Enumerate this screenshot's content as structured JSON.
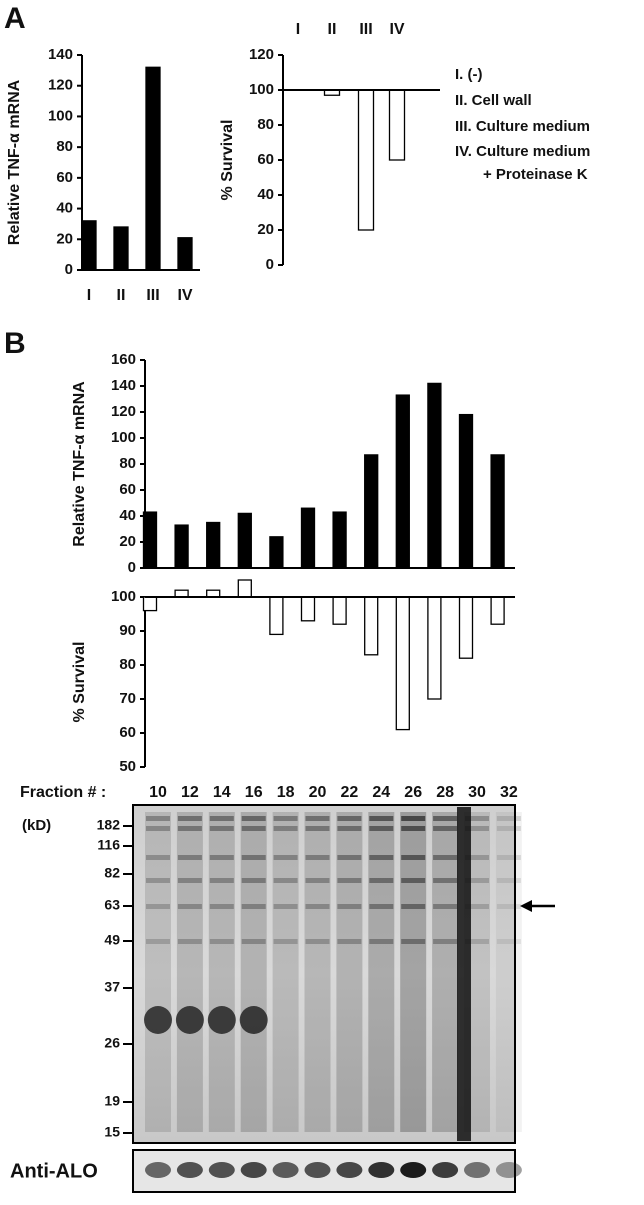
{
  "panel_labels": [
    "A",
    "B"
  ],
  "chart_data": [
    {
      "type": "bar",
      "ylabel": "Relative TNF-α mRNA",
      "categories": [
        "I",
        "II",
        "III",
        "IV"
      ],
      "values": [
        32,
        28,
        132,
        21
      ],
      "color": "#000000",
      "ylim": [
        0,
        140
      ],
      "yticks": [
        0,
        20,
        40,
        60,
        80,
        100,
        120,
        140
      ]
    },
    {
      "type": "hanging-bar",
      "ylabel": "% Survival",
      "categories": [
        "I",
        "II",
        "III",
        "IV"
      ],
      "values": [
        100,
        97,
        20,
        60
      ],
      "baseline": 100,
      "color": "#ffffff",
      "ylim": [
        0,
        120
      ],
      "yticks": [
        0,
        20,
        40,
        60,
        80,
        100,
        120
      ],
      "legend": [
        "I. (-)",
        "II. Cell wall",
        "III. Culture medium",
        "IV. Culture medium",
        "+ Proteinase K"
      ]
    },
    {
      "type": "bar",
      "ylabel": "Relative TNF-α mRNA",
      "xlabel": "Fraction # :",
      "categories": [
        "10",
        "12",
        "14",
        "16",
        "18",
        "20",
        "22",
        "24",
        "26",
        "28",
        "30",
        "32"
      ],
      "values": [
        43,
        33,
        35,
        42,
        24,
        46,
        43,
        87,
        133,
        142,
        118,
        87
      ],
      "color": "#000000",
      "ylim": [
        0,
        160
      ],
      "yticks": [
        0,
        20,
        40,
        60,
        80,
        100,
        120,
        140,
        160
      ]
    },
    {
      "type": "hanging-bar",
      "ylabel": "% Survival",
      "values": [
        96,
        102,
        102,
        105,
        89,
        93,
        92,
        83,
        61,
        70,
        82,
        92
      ],
      "baseline": 100,
      "color": "#ffffff",
      "ylim": [
        50,
        100
      ],
      "yticks": [
        50,
        60,
        70,
        80,
        90,
        100
      ]
    }
  ],
  "gel": {
    "unit_label": "(kD)",
    "markers": [
      182,
      116,
      82,
      63,
      49,
      37,
      26,
      19,
      15
    ],
    "blot_label": "Anti-ALO"
  }
}
